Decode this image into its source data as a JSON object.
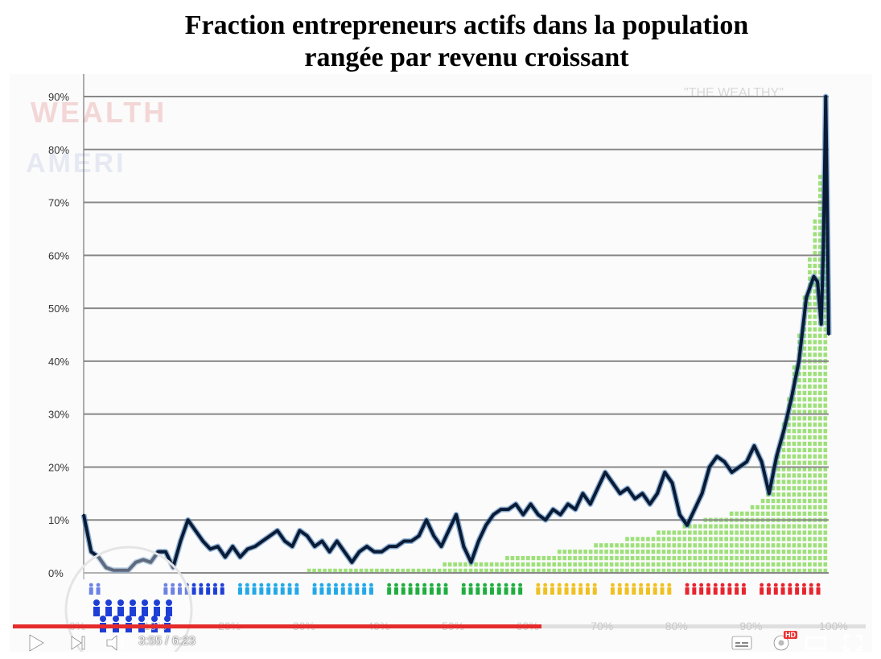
{
  "title": {
    "line1": "Fraction entrepreneurs actifs dans la population",
    "line2": "rangée par revenu croissant"
  },
  "background_text": {
    "logo_line1": "WEALTH",
    "logo_line3": "AMERI",
    "wealthy_label": "\"THE WEALTHY\""
  },
  "player": {
    "current_time": "3:55",
    "duration": "6:23",
    "time_text": "3:55 / 6:23",
    "progress": 0.62,
    "hd_badge": "HD",
    "icons": [
      "play-icon",
      "next-icon",
      "volume-icon",
      "subtitles-icon",
      "settings-icon",
      "theater-icon",
      "fullscreen-icon"
    ]
  },
  "colors": {
    "line": "#0a1b36",
    "line_glow": "#3a78b8",
    "bars": "#9ee07a",
    "grid": "#888888",
    "progress": "#e52b2b",
    "people": [
      "#1e3fd6",
      "#22a8e8",
      "#1fae3e",
      "#f0c020",
      "#e8242e"
    ]
  },
  "chart_data": {
    "type": "line",
    "xlabel": "",
    "ylabel": "",
    "xlim": [
      0,
      100
    ],
    "ylim": [
      0,
      90
    ],
    "x_ticks": [
      "0%",
      "10%",
      "20%",
      "30%",
      "40%",
      "50%",
      "60%",
      "70%",
      "80%",
      "90%",
      "100%"
    ],
    "y_ticks": [
      "0%",
      "10%",
      "20%",
      "30%",
      "40%",
      "50%",
      "60%",
      "70%",
      "80%",
      "90%"
    ],
    "grid": true,
    "series": [
      {
        "x": [
          0,
          1,
          2,
          3,
          4,
          5,
          6,
          7,
          8,
          9,
          10,
          11,
          12,
          13,
          14,
          15,
          16,
          17,
          18,
          19,
          20,
          21,
          22,
          23,
          24,
          25,
          26,
          27,
          28,
          29,
          30,
          31,
          32,
          33,
          34,
          35,
          36,
          37,
          38,
          39,
          40,
          41,
          42,
          43,
          44,
          45,
          46,
          47,
          48,
          49,
          50,
          51,
          52,
          53,
          54,
          55,
          56,
          57,
          58,
          59,
          60,
          61,
          62,
          63,
          64,
          65,
          66,
          67,
          68,
          69,
          70,
          71,
          72,
          73,
          74,
          75,
          76,
          77,
          78,
          79,
          80,
          81,
          82,
          83,
          84,
          85,
          86,
          87,
          88,
          89,
          90,
          91,
          92,
          93,
          94,
          95,
          96,
          97,
          98,
          98.5,
          99,
          99.3,
          99.6,
          99.8,
          100
        ],
        "y": [
          11,
          4,
          3,
          1,
          0.5,
          0.5,
          0.5,
          2,
          2.5,
          2,
          4,
          4,
          1,
          6,
          10,
          8,
          6,
          4.5,
          5,
          3,
          5,
          3,
          4.5,
          5,
          6,
          7,
          8,
          6,
          5,
          8,
          7,
          5,
          6,
          4,
          6,
          4,
          2,
          4,
          5,
          4,
          4,
          5,
          5,
          6,
          6,
          7,
          10,
          7,
          5,
          8,
          11,
          5,
          2,
          6,
          9,
          11,
          12,
          12,
          13,
          11,
          13,
          11,
          10,
          12,
          11,
          13,
          12,
          15,
          13,
          16,
          19,
          17,
          15,
          16,
          14,
          15,
          13,
          15,
          19,
          17,
          11,
          9,
          12,
          15,
          20,
          22,
          21,
          19,
          20,
          21,
          24,
          21,
          15,
          22,
          27,
          33,
          40,
          52,
          56,
          55,
          47,
          62,
          90,
          70,
          45
        ]
      }
    ]
  }
}
